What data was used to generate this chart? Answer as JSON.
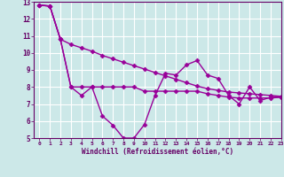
{
  "title": "",
  "xlabel": "Windchill (Refroidissement éolien,°C)",
  "background_color": "#cce8e8",
  "grid_color": "#ffffff",
  "line_color": "#990099",
  "x": [
    0,
    1,
    2,
    3,
    4,
    5,
    6,
    7,
    8,
    9,
    10,
    11,
    12,
    13,
    14,
    15,
    16,
    17,
    18,
    19,
    20,
    21,
    22,
    23
  ],
  "line1": [
    12.8,
    12.75,
    10.8,
    10.5,
    10.3,
    10.1,
    9.85,
    9.65,
    9.45,
    9.25,
    9.05,
    8.85,
    8.65,
    8.45,
    8.25,
    8.05,
    7.9,
    7.8,
    7.7,
    7.65,
    7.6,
    7.55,
    7.5,
    7.45
  ],
  "line2": [
    12.8,
    12.75,
    10.8,
    8.0,
    7.5,
    8.0,
    6.3,
    5.75,
    5.0,
    5.0,
    5.8,
    7.5,
    8.8,
    8.7,
    9.3,
    9.55,
    8.7,
    8.5,
    7.5,
    7.0,
    8.0,
    7.2,
    7.4,
    7.4
  ],
  "line3": [
    12.8,
    12.75,
    10.8,
    8.0,
    8.0,
    8.0,
    8.0,
    8.0,
    8.0,
    8.0,
    7.75,
    7.75,
    7.75,
    7.75,
    7.75,
    7.75,
    7.6,
    7.5,
    7.4,
    7.35,
    7.35,
    7.35,
    7.35,
    7.4
  ],
  "ylim": [
    5,
    13
  ],
  "xlim": [
    -0.5,
    23
  ],
  "yticks": [
    5,
    6,
    7,
    8,
    9,
    10,
    11,
    12,
    13
  ],
  "xticks": [
    0,
    1,
    2,
    3,
    4,
    5,
    6,
    7,
    8,
    9,
    10,
    11,
    12,
    13,
    14,
    15,
    16,
    17,
    18,
    19,
    20,
    21,
    22,
    23
  ],
  "marker": "D",
  "markersize": 2.5,
  "linewidth": 1.0
}
